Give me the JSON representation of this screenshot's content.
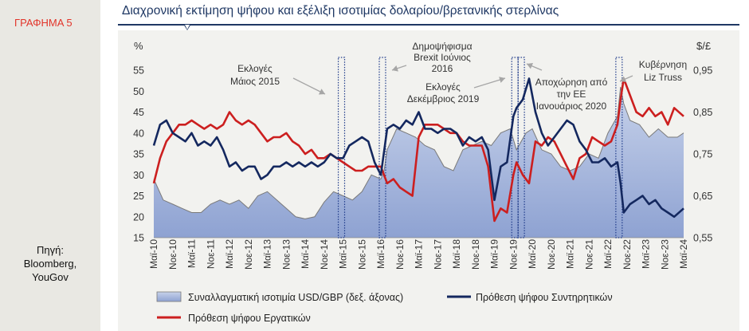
{
  "sidebar": {
    "chart_label": "ΓΡΑΦΗΜΑ 5",
    "source_lines": [
      "Πηγή:",
      "Bloomberg,",
      "YouGov"
    ]
  },
  "colors": {
    "title": "#1f3864",
    "conservatives": "#14285f",
    "labour": "#cc1f1f",
    "fx_fill": "#aab9d9",
    "fx_line": "#7a7a7a",
    "event_box": "#1f3b8a",
    "chart_label": "#e2342a"
  },
  "chart_data": {
    "type": "line",
    "title": "Διαχρονική εκτίμηση ψήφου και εξέλιξη ισοτιμίας δολαρίου/βρετανικής στερλίνας",
    "y_left": {
      "unit_label": "%",
      "lim": [
        15,
        55
      ],
      "ticks": [
        15,
        20,
        25,
        30,
        35,
        40,
        45,
        50,
        55
      ]
    },
    "y_right": {
      "unit_label": "$/£",
      "lim": [
        0.55,
        0.95
      ],
      "ticks": [
        "0,55",
        "0,65",
        "0,75",
        "0,85",
        "0,95"
      ],
      "tick_values": [
        0.55,
        0.65,
        0.75,
        0.85,
        0.95
      ]
    },
    "x_range": [
      "2010-05",
      "2024-05"
    ],
    "x_tick_labels": [
      "Μαϊ-10",
      "Νοε-10",
      "Μαϊ-11",
      "Νοε-11",
      "Μαϊ-12",
      "Νοε-12",
      "Μαϊ-13",
      "Νοε-13",
      "Μαϊ-14",
      "Νοε-14",
      "Μαϊ-15",
      "Νοε-15",
      "Μαϊ-16",
      "Νοε-16",
      "Μαϊ-17",
      "Νοε-17",
      "Μαϊ-18",
      "Νοε-18",
      "Μαϊ-19",
      "Νοε-19",
      "Μαϊ-20",
      "Νοε-20",
      "Μαϊ-21",
      "Νοε-21",
      "Μαϊ-22",
      "Νοε-22",
      "Μαϊ-23",
      "Νοε-23",
      "Μαϊ-24"
    ],
    "series": [
      {
        "name": "Συναλλαγματική ισοτιμία USD/GBP (δεξ. άξονας)",
        "kind": "area",
        "axis": "right",
        "points": [
          [
            "2010-05",
            0.69
          ],
          [
            "2010-08",
            0.64
          ],
          [
            "2010-11",
            0.63
          ],
          [
            "2011-02",
            0.62
          ],
          [
            "2011-05",
            0.61
          ],
          [
            "2011-08",
            0.61
          ],
          [
            "2011-11",
            0.63
          ],
          [
            "2012-02",
            0.64
          ],
          [
            "2012-05",
            0.63
          ],
          [
            "2012-08",
            0.64
          ],
          [
            "2012-11",
            0.62
          ],
          [
            "2013-02",
            0.65
          ],
          [
            "2013-05",
            0.66
          ],
          [
            "2013-08",
            0.64
          ],
          [
            "2013-11",
            0.62
          ],
          [
            "2014-02",
            0.6
          ],
          [
            "2014-05",
            0.595
          ],
          [
            "2014-08",
            0.6
          ],
          [
            "2014-11",
            0.635
          ],
          [
            "2015-02",
            0.66
          ],
          [
            "2015-05",
            0.65
          ],
          [
            "2015-08",
            0.64
          ],
          [
            "2015-11",
            0.66
          ],
          [
            "2016-02",
            0.7
          ],
          [
            "2016-05",
            0.69
          ],
          [
            "2016-06",
            0.71
          ],
          [
            "2016-07",
            0.76
          ],
          [
            "2016-10",
            0.81
          ],
          [
            "2017-01",
            0.8
          ],
          [
            "2017-04",
            0.79
          ],
          [
            "2017-07",
            0.77
          ],
          [
            "2017-10",
            0.76
          ],
          [
            "2018-01",
            0.72
          ],
          [
            "2018-04",
            0.71
          ],
          [
            "2018-07",
            0.76
          ],
          [
            "2018-10",
            0.77
          ],
          [
            "2019-01",
            0.78
          ],
          [
            "2019-04",
            0.77
          ],
          [
            "2019-07",
            0.8
          ],
          [
            "2019-10",
            0.81
          ],
          [
            "2019-12",
            0.76
          ],
          [
            "2020-03",
            0.8
          ],
          [
            "2020-05",
            0.81
          ],
          [
            "2020-08",
            0.76
          ],
          [
            "2020-11",
            0.75
          ],
          [
            "2021-02",
            0.72
          ],
          [
            "2021-05",
            0.71
          ],
          [
            "2021-08",
            0.72
          ],
          [
            "2021-11",
            0.75
          ],
          [
            "2022-02",
            0.74
          ],
          [
            "2022-05",
            0.8
          ],
          [
            "2022-08",
            0.84
          ],
          [
            "2022-09",
            0.91
          ],
          [
            "2022-10",
            0.87
          ],
          [
            "2022-12",
            0.83
          ],
          [
            "2023-03",
            0.82
          ],
          [
            "2023-06",
            0.79
          ],
          [
            "2023-09",
            0.81
          ],
          [
            "2023-12",
            0.79
          ],
          [
            "2024-03",
            0.79
          ],
          [
            "2024-05",
            0.8
          ]
        ]
      },
      {
        "name": "Πρόθεση ψήφου Συντηρητικών",
        "kind": "line",
        "axis": "left",
        "points": [
          [
            "2010-05",
            37
          ],
          [
            "2010-07",
            42
          ],
          [
            "2010-09",
            43
          ],
          [
            "2010-11",
            40
          ],
          [
            "2011-01",
            39
          ],
          [
            "2011-03",
            38
          ],
          [
            "2011-05",
            40
          ],
          [
            "2011-07",
            37
          ],
          [
            "2011-09",
            38
          ],
          [
            "2011-11",
            37
          ],
          [
            "2012-01",
            39
          ],
          [
            "2012-03",
            36
          ],
          [
            "2012-05",
            32
          ],
          [
            "2012-07",
            33
          ],
          [
            "2012-09",
            31
          ],
          [
            "2012-11",
            32
          ],
          [
            "2013-01",
            32
          ],
          [
            "2013-03",
            29
          ],
          [
            "2013-05",
            30
          ],
          [
            "2013-07",
            32
          ],
          [
            "2013-09",
            32
          ],
          [
            "2013-11",
            33
          ],
          [
            "2014-01",
            32
          ],
          [
            "2014-03",
            33
          ],
          [
            "2014-05",
            32
          ],
          [
            "2014-07",
            33
          ],
          [
            "2014-09",
            32
          ],
          [
            "2014-11",
            33
          ],
          [
            "2015-01",
            35
          ],
          [
            "2015-03",
            34
          ],
          [
            "2015-05",
            34
          ],
          [
            "2015-07",
            37
          ],
          [
            "2015-09",
            38
          ],
          [
            "2015-11",
            39
          ],
          [
            "2016-01",
            38
          ],
          [
            "2016-03",
            33
          ],
          [
            "2016-05",
            30
          ],
          [
            "2016-07",
            41
          ],
          [
            "2016-09",
            42
          ],
          [
            "2016-11",
            41
          ],
          [
            "2017-01",
            43
          ],
          [
            "2017-03",
            42
          ],
          [
            "2017-05",
            45
          ],
          [
            "2017-07",
            41
          ],
          [
            "2017-09",
            41
          ],
          [
            "2017-11",
            40
          ],
          [
            "2018-01",
            41
          ],
          [
            "2018-03",
            41
          ],
          [
            "2018-05",
            40
          ],
          [
            "2018-07",
            37
          ],
          [
            "2018-09",
            39
          ],
          [
            "2018-11",
            38
          ],
          [
            "2019-01",
            39
          ],
          [
            "2019-03",
            36
          ],
          [
            "2019-05",
            24
          ],
          [
            "2019-07",
            32
          ],
          [
            "2019-09",
            33
          ],
          [
            "2019-11",
            44
          ],
          [
            "2019-12",
            46
          ],
          [
            "2020-02",
            48
          ],
          [
            "2020-04",
            53
          ],
          [
            "2020-06",
            45
          ],
          [
            "2020-08",
            40
          ],
          [
            "2020-10",
            37
          ],
          [
            "2020-12",
            39
          ],
          [
            "2021-02",
            41
          ],
          [
            "2021-04",
            43
          ],
          [
            "2021-06",
            42
          ],
          [
            "2021-08",
            38
          ],
          [
            "2021-10",
            36
          ],
          [
            "2021-12",
            33
          ],
          [
            "2022-02",
            33
          ],
          [
            "2022-04",
            34
          ],
          [
            "2022-06",
            32
          ],
          [
            "2022-08",
            33
          ],
          [
            "2022-09",
            28
          ],
          [
            "2022-10",
            21
          ],
          [
            "2022-12",
            23
          ],
          [
            "2023-02",
            24
          ],
          [
            "2023-04",
            25
          ],
          [
            "2023-06",
            23
          ],
          [
            "2023-08",
            24
          ],
          [
            "2023-10",
            22
          ],
          [
            "2023-12",
            21
          ],
          [
            "2024-02",
            20
          ],
          [
            "2024-05",
            22
          ]
        ]
      },
      {
        "name": "Πρόθεση ψήφου Εργατικών",
        "kind": "line",
        "axis": "left",
        "points": [
          [
            "2010-05",
            28
          ],
          [
            "2010-07",
            34
          ],
          [
            "2010-09",
            38
          ],
          [
            "2010-11",
            40
          ],
          [
            "2011-01",
            42
          ],
          [
            "2011-03",
            42
          ],
          [
            "2011-05",
            43
          ],
          [
            "2011-07",
            42
          ],
          [
            "2011-09",
            41
          ],
          [
            "2011-11",
            42
          ],
          [
            "2012-01",
            41
          ],
          [
            "2012-03",
            42
          ],
          [
            "2012-05",
            45
          ],
          [
            "2012-07",
            43
          ],
          [
            "2012-09",
            42
          ],
          [
            "2012-11",
            43
          ],
          [
            "2013-01",
            42
          ],
          [
            "2013-03",
            40
          ],
          [
            "2013-05",
            38
          ],
          [
            "2013-07",
            39
          ],
          [
            "2013-09",
            39
          ],
          [
            "2013-11",
            40
          ],
          [
            "2014-01",
            38
          ],
          [
            "2014-03",
            37
          ],
          [
            "2014-05",
            35
          ],
          [
            "2014-07",
            36
          ],
          [
            "2014-09",
            34
          ],
          [
            "2014-11",
            34
          ],
          [
            "2015-01",
            35
          ],
          [
            "2015-03",
            34
          ],
          [
            "2015-05",
            33
          ],
          [
            "2015-07",
            32
          ],
          [
            "2015-09",
            31
          ],
          [
            "2015-11",
            31
          ],
          [
            "2016-01",
            32
          ],
          [
            "2016-03",
            32
          ],
          [
            "2016-05",
            32
          ],
          [
            "2016-07",
            28
          ],
          [
            "2016-09",
            29
          ],
          [
            "2016-11",
            27
          ],
          [
            "2017-01",
            26
          ],
          [
            "2017-03",
            25
          ],
          [
            "2017-05",
            39
          ],
          [
            "2017-07",
            42
          ],
          [
            "2017-09",
            42
          ],
          [
            "2017-11",
            42
          ],
          [
            "2018-01",
            41
          ],
          [
            "2018-03",
            40
          ],
          [
            "2018-05",
            40
          ],
          [
            "2018-07",
            38
          ],
          [
            "2018-09",
            37
          ],
          [
            "2018-11",
            37
          ],
          [
            "2019-01",
            37
          ],
          [
            "2019-03",
            32
          ],
          [
            "2019-05",
            19
          ],
          [
            "2019-07",
            22
          ],
          [
            "2019-09",
            21
          ],
          [
            "2019-11",
            30
          ],
          [
            "2019-12",
            33
          ],
          [
            "2020-02",
            30
          ],
          [
            "2020-04",
            28
          ],
          [
            "2020-06",
            38
          ],
          [
            "2020-08",
            37
          ],
          [
            "2020-10",
            39
          ],
          [
            "2020-12",
            38
          ],
          [
            "2021-02",
            35
          ],
          [
            "2021-04",
            32
          ],
          [
            "2021-06",
            29
          ],
          [
            "2021-08",
            34
          ],
          [
            "2021-10",
            35
          ],
          [
            "2021-12",
            39
          ],
          [
            "2022-02",
            38
          ],
          [
            "2022-04",
            37
          ],
          [
            "2022-06",
            38
          ],
          [
            "2022-08",
            42
          ],
          [
            "2022-09",
            48
          ],
          [
            "2022-10",
            53
          ],
          [
            "2022-12",
            49
          ],
          [
            "2023-02",
            45
          ],
          [
            "2023-04",
            44
          ],
          [
            "2023-06",
            46
          ],
          [
            "2023-08",
            44
          ],
          [
            "2023-10",
            45
          ],
          [
            "2023-12",
            42
          ],
          [
            "2024-02",
            46
          ],
          [
            "2024-05",
            44
          ]
        ]
      }
    ],
    "events": [
      {
        "label_lines": [
          "Εκλογές",
          "Μάιος 2015"
        ],
        "box_dates": [
          "2015-04",
          "2015-05"
        ]
      },
      {
        "label_lines": [
          "Δημοψήφισμα",
          "Brexit Ιούνιος",
          "2016"
        ],
        "box_dates": [
          "2016-05",
          "2016-06"
        ]
      },
      {
        "label_lines": [
          "Εκλογές",
          "Δεκέμβριος 2019"
        ],
        "box_dates": [
          "2019-11",
          "2019-12"
        ]
      },
      {
        "label_lines": [
          "Αποχώρηση από",
          "την ΕΕ",
          "Ιανουάριος 2020"
        ],
        "box_dates": [
          "2020-01",
          "2020-02"
        ]
      },
      {
        "label_lines": [
          "Κυβέρνηση",
          "Liz Truss"
        ],
        "box_dates": [
          "2022-08",
          "2022-09"
        ]
      }
    ]
  }
}
